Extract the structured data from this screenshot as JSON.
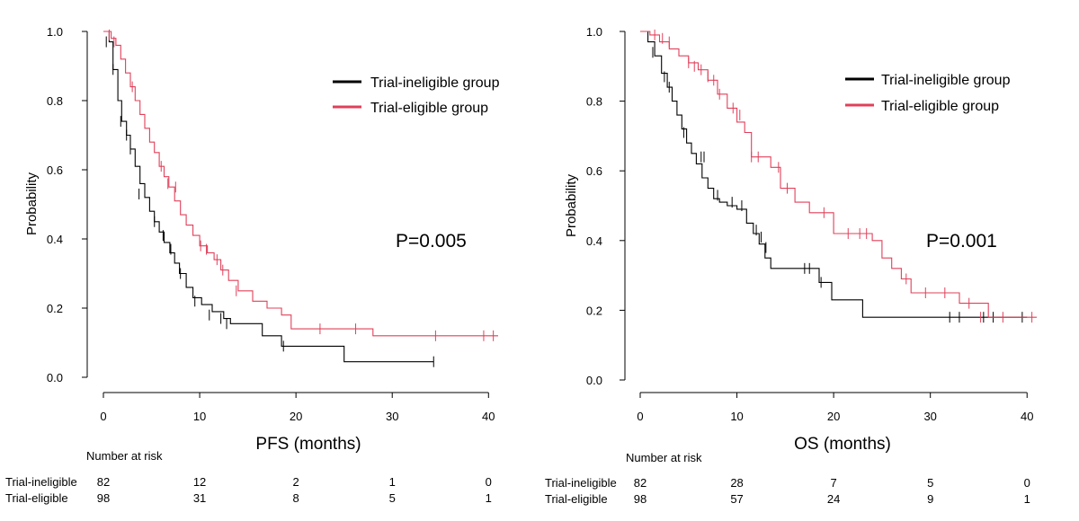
{
  "chart_data": [
    {
      "type": "line",
      "subtype": "kaplan-meier",
      "xlabel": "PFS (months)",
      "ylabel": "Probability",
      "xlim": [
        0,
        41
      ],
      "ylim": [
        0,
        1
      ],
      "x_ticks": [
        0,
        10,
        20,
        30,
        40
      ],
      "y_ticks": [
        "0.0",
        "0.2",
        "0.4",
        "0.6",
        "0.8",
        "1.0"
      ],
      "annotation": "P=0.005",
      "legend_position": "top-right",
      "series": [
        {
          "name": "Trial-ineligible group",
          "color": "#000000",
          "x": [
            0,
            0.6,
            1.0,
            1.5,
            1.9,
            2.4,
            2.8,
            3.3,
            3.8,
            4.3,
            4.8,
            5.3,
            5.8,
            6.3,
            6.9,
            7.4,
            7.9,
            8.6,
            9.3,
            10.2,
            11.3,
            12.5,
            13.2,
            16.5,
            18.5,
            25.0,
            34.3
          ],
          "y": [
            1.0,
            0.97,
            0.89,
            0.8,
            0.74,
            0.7,
            0.66,
            0.61,
            0.56,
            0.52,
            0.48,
            0.45,
            0.42,
            0.39,
            0.36,
            0.33,
            0.3,
            0.26,
            0.23,
            0.21,
            0.19,
            0.17,
            0.155,
            0.12,
            0.09,
            0.045,
            0.045
          ],
          "censor_x": [
            0.3,
            1.0,
            1.8,
            2.4,
            2.8,
            3.7,
            5.3,
            6.2,
            7.0,
            8.0,
            9.5,
            11.0,
            12.2,
            12.8,
            18.7,
            34.3
          ],
          "censor_y": [
            0.97,
            0.89,
            0.74,
            0.7,
            0.66,
            0.53,
            0.45,
            0.41,
            0.37,
            0.3,
            0.22,
            0.18,
            0.17,
            0.155,
            0.09,
            0.045
          ]
        },
        {
          "name": "Trial-eligible group",
          "color": "#e0405a",
          "x": [
            0,
            0.8,
            1.3,
            1.8,
            2.3,
            2.8,
            3.3,
            3.8,
            4.3,
            4.8,
            5.3,
            5.8,
            6.3,
            6.8,
            7.4,
            8.0,
            8.6,
            9.3,
            10.0,
            10.8,
            11.5,
            12.2,
            13.0,
            14.0,
            15.5,
            17.0,
            18.5,
            19.5,
            28.0,
            41.0
          ],
          "y": [
            1.0,
            0.98,
            0.96,
            0.92,
            0.88,
            0.84,
            0.8,
            0.76,
            0.72,
            0.68,
            0.65,
            0.61,
            0.58,
            0.55,
            0.51,
            0.47,
            0.44,
            0.41,
            0.38,
            0.36,
            0.34,
            0.31,
            0.28,
            0.25,
            0.22,
            0.2,
            0.18,
            0.14,
            0.12,
            0.12
          ],
          "censor_x": [
            0.6,
            1.1,
            3.0,
            6.0,
            6.7,
            7.5,
            10.1,
            10.7,
            11.8,
            12.4,
            13.8,
            22.5,
            26.2,
            34.5,
            39.5,
            40.5
          ],
          "censor_y": [
            0.99,
            0.97,
            0.84,
            0.61,
            0.56,
            0.55,
            0.38,
            0.37,
            0.34,
            0.31,
            0.25,
            0.14,
            0.14,
            0.12,
            0.12,
            0.12
          ]
        }
      ],
      "number_at_risk": {
        "header": "Number  at risk",
        "times": [
          0,
          10,
          20,
          30,
          40
        ],
        "rows": [
          {
            "label": "Trial-ineligible",
            "values": [
              "82",
              "12",
              "2",
              "1",
              "0"
            ]
          },
          {
            "label": "Trial-eligible",
            "values": [
              "98",
              "31",
              "8",
              "5",
              "1"
            ]
          }
        ]
      }
    },
    {
      "type": "line",
      "subtype": "kaplan-meier",
      "xlabel": "OS (months)",
      "ylabel": "Probability",
      "xlim": [
        0,
        41
      ],
      "ylim": [
        0,
        1
      ],
      "x_ticks": [
        0,
        10,
        20,
        30,
        40
      ],
      "y_ticks": [
        "0.0",
        "0.2",
        "0.4",
        "0.6",
        "0.8",
        "1.0"
      ],
      "annotation": "P=0.001",
      "legend_position": "top-right",
      "series": [
        {
          "name": "Trial-ineligible group",
          "color": "#000000",
          "x": [
            0,
            0.8,
            1.5,
            2.2,
            2.8,
            3.3,
            3.8,
            4.3,
            4.8,
            5.3,
            5.8,
            6.4,
            7.0,
            7.6,
            8.2,
            9.0,
            10.0,
            11.0,
            11.7,
            12.3,
            12.9,
            13.5,
            14.0,
            18.5,
            19.8,
            23.0,
            40.0
          ],
          "y": [
            1.0,
            0.97,
            0.93,
            0.88,
            0.84,
            0.8,
            0.76,
            0.72,
            0.68,
            0.65,
            0.62,
            0.58,
            0.55,
            0.52,
            0.51,
            0.5,
            0.49,
            0.45,
            0.42,
            0.39,
            0.35,
            0.32,
            0.32,
            0.28,
            0.23,
            0.18,
            0.18
          ],
          "censor_x": [
            1.3,
            2.5,
            3.0,
            4.5,
            6.3,
            6.6,
            8.0,
            9.5,
            10.5,
            12.0,
            12.5,
            13.0,
            17.0,
            17.5,
            18.7,
            32.0,
            33.0,
            35.5,
            36.5,
            39.5
          ],
          "censor_y": [
            0.94,
            0.87,
            0.84,
            0.71,
            0.64,
            0.64,
            0.53,
            0.51,
            0.5,
            0.43,
            0.41,
            0.38,
            0.32,
            0.32,
            0.28,
            0.18,
            0.18,
            0.18,
            0.18,
            0.18
          ]
        },
        {
          "name": "Trial-eligible group",
          "color": "#e0405a",
          "x": [
            0,
            1.0,
            2.0,
            3.0,
            4.0,
            5.0,
            6.0,
            7.0,
            8.0,
            9.0,
            10.0,
            10.8,
            11.5,
            12.5,
            13.5,
            14.5,
            16.0,
            17.5,
            18.5,
            20.0,
            22.0,
            24.0,
            25.0,
            26.0,
            27.0,
            28.0,
            30.0,
            32.0,
            33.0,
            35.0,
            36.0,
            41.0
          ],
          "y": [
            1.0,
            0.99,
            0.97,
            0.95,
            0.93,
            0.91,
            0.89,
            0.86,
            0.82,
            0.78,
            0.74,
            0.71,
            0.64,
            0.64,
            0.61,
            0.55,
            0.51,
            0.48,
            0.48,
            0.42,
            0.42,
            0.4,
            0.35,
            0.32,
            0.29,
            0.25,
            0.25,
            0.25,
            0.22,
            0.22,
            0.18,
            0.18
          ],
          "censor_x": [
            1.5,
            2.3,
            3.0,
            5.0,
            5.6,
            6.3,
            7.0,
            7.6,
            8.2,
            9.6,
            10.3,
            11.5,
            12.2,
            14.3,
            15.2,
            19.0,
            21.5,
            22.7,
            23.4,
            27.5,
            29.5,
            31.5,
            34.0,
            35.2,
            37.5,
            40.5
          ],
          "censor_y": [
            0.99,
            0.98,
            0.97,
            0.91,
            0.9,
            0.89,
            0.87,
            0.86,
            0.82,
            0.78,
            0.76,
            0.64,
            0.64,
            0.61,
            0.55,
            0.48,
            0.42,
            0.42,
            0.42,
            0.29,
            0.25,
            0.25,
            0.22,
            0.18,
            0.18,
            0.18
          ]
        }
      ],
      "number_at_risk": {
        "header": "Number  at risk",
        "times": [
          0,
          10,
          20,
          30,
          40
        ],
        "rows": [
          {
            "label": "Trial-ineligible",
            "values": [
              "82",
              "28",
              "7",
              "5",
              "0"
            ]
          },
          {
            "label": "Trial-eligible",
            "values": [
              "98",
              "57",
              "24",
              "9",
              "1"
            ]
          }
        ]
      }
    }
  ]
}
